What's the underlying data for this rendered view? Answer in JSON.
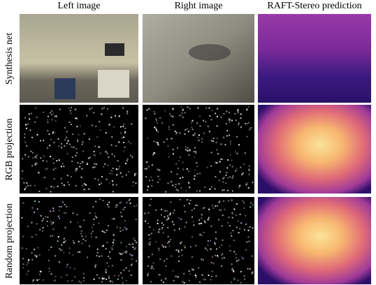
{
  "columns": [
    "Left image",
    "Right image",
    "RAFT-Stereo prediction"
  ],
  "rows": [
    "Synthesis net",
    "RGB projection",
    "Random projection"
  ]
}
